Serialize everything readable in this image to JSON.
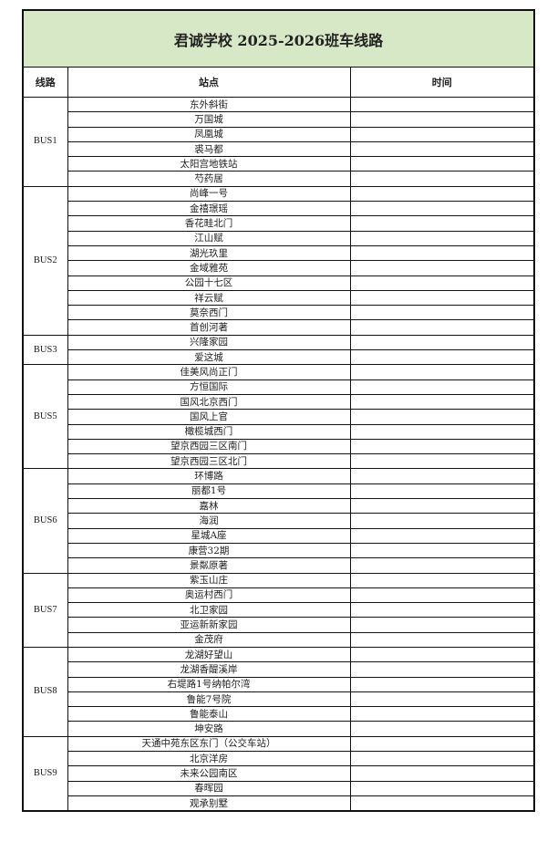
{
  "title": "君诚学校 2025-2026班车线路",
  "headers": {
    "route": "线路",
    "stop": "站点",
    "time": "时间"
  },
  "colors": {
    "title_bg": "#d6e8c6",
    "border": "#111111"
  },
  "routes": [
    {
      "name": "BUS1",
      "stops": [
        "东外斜街",
        "万国城",
        "凤凰城",
        "裘马都",
        "太阳宫地铁站",
        "芍药居"
      ]
    },
    {
      "name": "BUS2",
      "stops": [
        "尚峰一号",
        "金禧璟瑶",
        "香花畦北门",
        "江山赋",
        "湖光玖里",
        "金域雅苑",
        "公园十七区",
        "祥云赋",
        "莫奈西门",
        "首创河著"
      ]
    },
    {
      "name": "BUS3",
      "stops": [
        "兴隆家园",
        "爱这城"
      ]
    },
    {
      "name": "BUS5",
      "stops": [
        "佳美风尚正门",
        "方恒国际",
        "国风北京西门",
        "国风上官",
        "橄榄城西门",
        "望京西园三区南门",
        "望京西园三区北门"
      ]
    },
    {
      "name": "BUS6",
      "stops": [
        "环博路",
        "丽都1号",
        "嘉林",
        "海润",
        "星城A座",
        "康营32期",
        "景粼原著"
      ]
    },
    {
      "name": "BUS7",
      "stops": [
        "紫玉山庄",
        "奥运村西门",
        "北卫家园",
        "亚运新新家园",
        "金茂府"
      ]
    },
    {
      "name": "BUS8",
      "stops": [
        "龙湖好望山",
        "龙湖香醍溪岸",
        "右堤路1号纳帕尔湾",
        "鲁能7号院",
        "鲁能泰山",
        "坤安路"
      ]
    },
    {
      "name": "BUS9",
      "stops": [
        "天通中苑东区东门（公交车站）",
        "北京洋房",
        "未来公园南区",
        "春晖园",
        "观承别墅"
      ]
    }
  ]
}
